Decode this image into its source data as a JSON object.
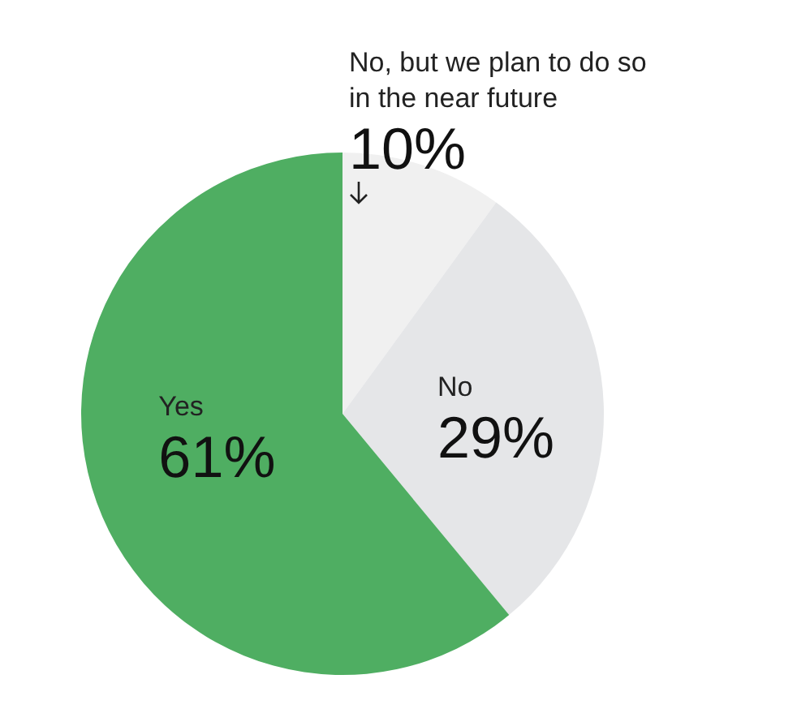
{
  "chart_data": {
    "type": "pie",
    "categories": [
      "No, but we plan to do so in the near future",
      "No",
      "Yes"
    ],
    "values": [
      10,
      29,
      61
    ],
    "colors": [
      "#f0f0f0",
      "#e5e6e8",
      "#4fae62"
    ],
    "value_labels": [
      "10%",
      "29%",
      "61%"
    ]
  }
}
